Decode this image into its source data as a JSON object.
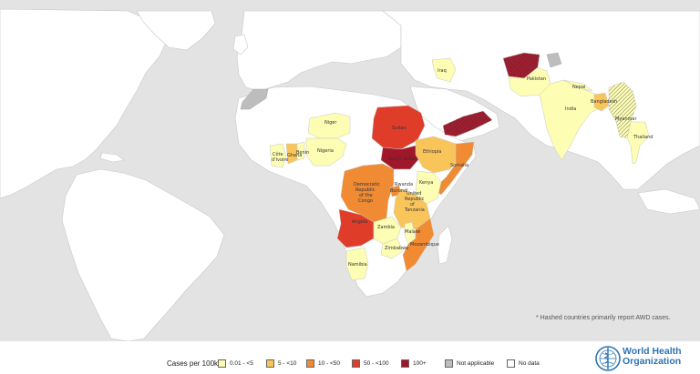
{
  "legend": {
    "title": "Cases per 100k",
    "items": [
      {
        "label": "0.01 - <5",
        "color": "#fdfdb3"
      },
      {
        "label": "5 - <10",
        "color": "#f9c55b"
      },
      {
        "label": "10 - <50",
        "color": "#f08b33"
      },
      {
        "label": "50 - <100",
        "color": "#e03c2a"
      },
      {
        "label": "100+",
        "color": "#a0172a"
      },
      {
        "label": "Not applicable",
        "color": "#bdbdbd"
      },
      {
        "label": "No data",
        "color": "#ffffff"
      }
    ]
  },
  "footnote": "* Hashed countries primarily report AWD cases.",
  "organization": {
    "line1": "World Health",
    "line2": "Organization"
  },
  "countries": {
    "iraq": "Iraq",
    "pakistan": "Pakistan",
    "nepal": "Nepal",
    "india": "India",
    "bangladesh": "Bangladesh",
    "myanmar": "Myanmar",
    "thailand": "Thailand",
    "niger": "Niger",
    "nigeria": "Nigeria",
    "cote_divoire_1": "Côte",
    "cote_divoire_2": "d'Ivoire",
    "ghana": "Ghana",
    "benin": "Benin",
    "sudan": "Sudan",
    "ethiopia": "Ethiopia",
    "somalia": "Somalia",
    "south_sudan": "South Sudan",
    "kenya": "Kenya",
    "drc_1": "Democratic",
    "drc_2": "Republic",
    "drc_3": "of the",
    "drc_4": "Congo",
    "burundi": "Burundi",
    "rwanda": "Rwanda",
    "tanzania_1": "United",
    "tanzania_2": "Republic",
    "tanzania_3": "of",
    "tanzania_4": "Tanzania",
    "angola": "Angola",
    "zambia": "Zambia",
    "malawi": "Malawi",
    "zimbabwe": "Zimbabwe",
    "mozambique": "Mozambique",
    "namibia": "Namibia"
  },
  "colors": {
    "ocean": "#e3e3e3",
    "land_nodata": "#ffffff",
    "border": "#c8c8c8"
  }
}
